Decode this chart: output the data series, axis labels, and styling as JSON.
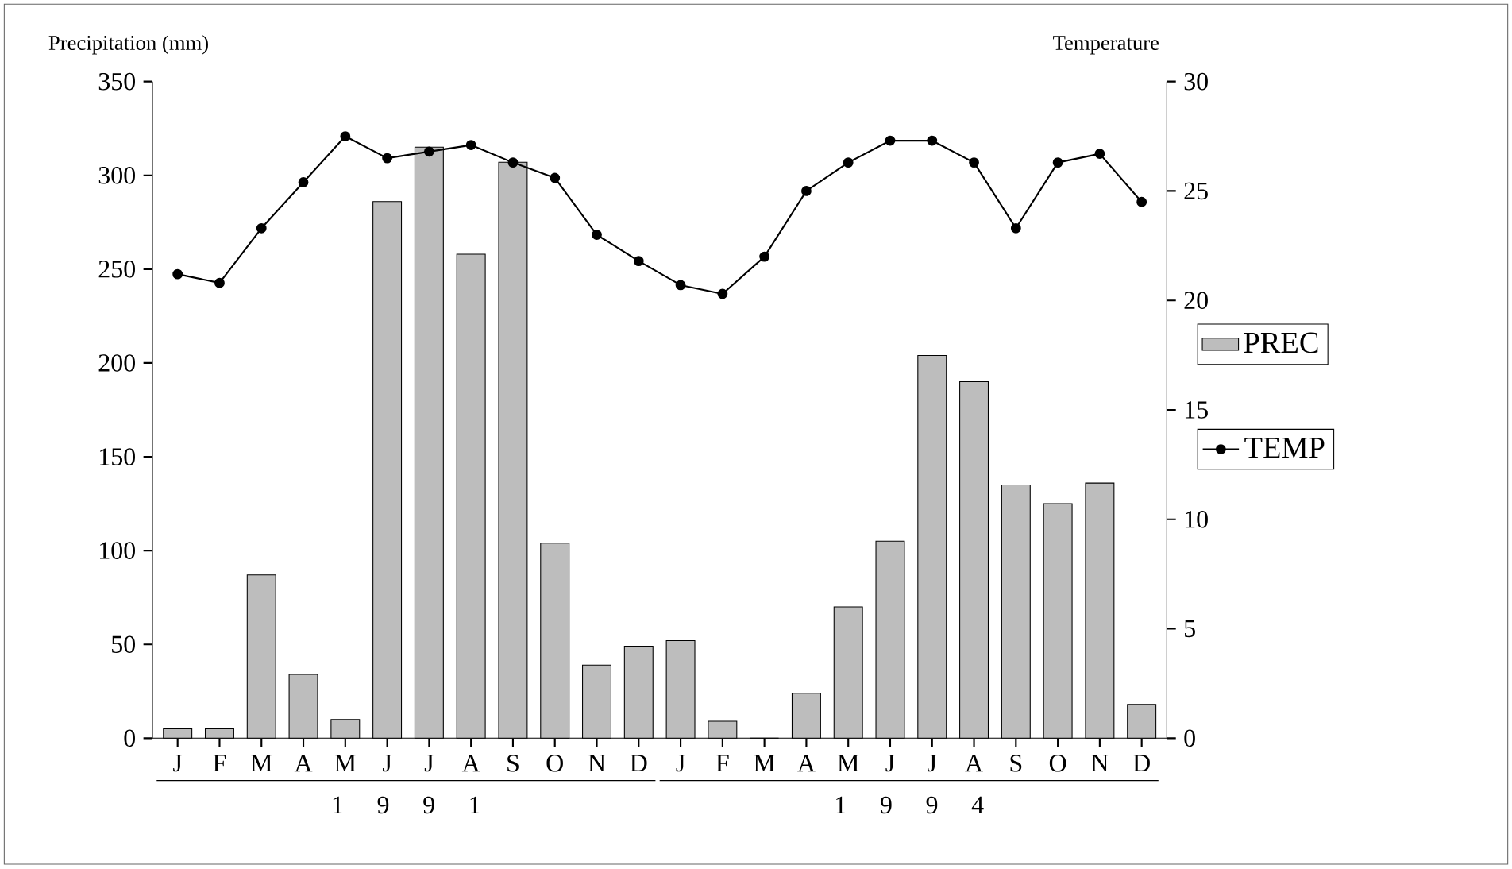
{
  "chart_data": {
    "type": "bar",
    "categories": [
      "J",
      "F",
      "M",
      "A",
      "M",
      "J",
      "J",
      "A",
      "S",
      "O",
      "N",
      "D",
      "J",
      "F",
      "M",
      "A",
      "M",
      "J",
      "J",
      "A",
      "S",
      "O",
      "N",
      "D"
    ],
    "series": [
      {
        "name": "PREC",
        "color": "#bdbdbd",
        "values": [
          5,
          5,
          87,
          34,
          10,
          286,
          315,
          258,
          307,
          104,
          39,
          49,
          52,
          9,
          0,
          24,
          70,
          105,
          204,
          190,
          135,
          125,
          136,
          18
        ]
      },
      {
        "name": "TEMP",
        "type": "line",
        "axis": "y2",
        "color": "#000000",
        "marker": "circle",
        "values": [
          21.2,
          20.8,
          23.3,
          25.4,
          27.5,
          26.5,
          26.8,
          27.1,
          26.3,
          25.6,
          23.0,
          21.8,
          20.7,
          20.3,
          22.0,
          25.0,
          26.3,
          27.3,
          27.3,
          26.3,
          23.3,
          26.3,
          26.7,
          24.5
        ]
      }
    ],
    "ylabel": "Precipitation (mm)",
    "y2label": "Temperature",
    "ylim": [
      0,
      350
    ],
    "yticks": [
      0,
      50,
      100,
      150,
      200,
      250,
      300,
      350
    ],
    "y2lim": [
      0,
      30
    ],
    "y2ticks": [
      0,
      5,
      10,
      15,
      20,
      25,
      30
    ],
    "annotations": [
      "1 9 9 1",
      "1 9 9 4"
    ],
    "legend": "right"
  }
}
